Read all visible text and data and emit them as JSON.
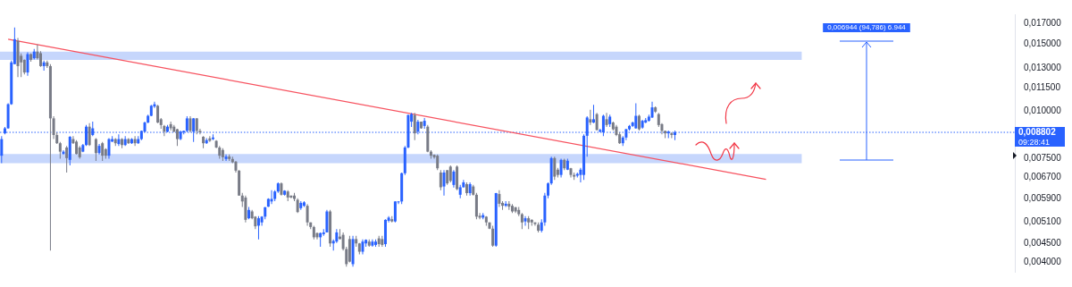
{
  "chart_data": {
    "type": "candlestick",
    "categories": [
      null,
      null,
      null,
      null,
      null,
      null,
      null,
      null,
      null,
      null,
      null,
      null,
      null,
      null,
      null,
      null,
      null,
      null,
      null,
      null,
      null,
      null,
      null,
      null,
      null,
      null,
      null,
      null,
      null,
      null,
      null,
      null,
      null,
      null,
      null,
      null,
      null,
      null,
      null,
      null,
      null,
      null,
      null,
      null,
      null,
      null,
      null,
      null,
      null,
      null,
      null,
      null,
      null,
      null,
      null,
      null,
      null,
      null,
      null,
      null,
      null,
      null,
      null,
      null,
      null,
      null,
      null,
      null,
      null,
      null,
      null,
      null,
      null,
      null,
      null,
      null,
      null,
      null,
      null,
      null,
      null,
      null,
      null,
      null,
      null,
      null,
      null,
      null,
      null,
      null,
      null,
      null,
      null,
      null,
      null,
      null,
      null,
      null,
      null,
      null,
      null,
      null,
      null,
      null,
      null,
      null,
      null,
      null,
      null,
      null,
      null,
      null,
      null,
      null,
      null,
      null,
      null,
      null,
      null,
      null,
      null,
      null,
      null,
      null,
      null,
      null,
      null,
      null,
      null,
      null,
      null,
      null,
      null,
      null,
      null,
      null,
      null,
      null,
      null,
      null,
      null,
      null,
      null,
      null,
      null,
      null,
      null,
      null,
      null,
      null,
      null,
      null,
      null,
      null,
      null,
      null,
      null,
      null,
      null,
      null,
      null,
      null,
      null,
      null,
      null,
      null,
      null,
      null,
      null,
      null,
      null,
      null,
      null,
      null,
      null,
      null,
      null,
      null,
      null,
      null,
      null,
      null,
      null,
      null,
      null,
      null,
      null,
      null,
      null,
      null,
      null,
      null,
      null,
      null,
      null,
      null,
      null,
      null,
      null,
      null,
      null,
      null,
      null,
      null,
      null,
      null,
      null,
      null,
      null,
      null,
      null,
      null,
      null,
      null,
      null,
      null,
      null,
      null,
      null,
      null,
      null,
      null,
      null,
      null,
      null,
      null,
      null,
      null,
      null,
      null,
      null,
      null,
      null,
      null,
      null,
      null,
      null,
      null,
      null,
      null,
      null,
      null,
      null,
      null,
      null,
      null,
      null,
      null,
      null,
      null,
      null,
      null,
      null,
      null,
      null,
      null,
      null,
      null,
      null,
      null,
      null,
      null,
      null,
      null,
      null,
      null,
      null,
      null,
      null,
      null,
      null,
      null,
      null,
      null,
      null,
      null,
      null,
      null,
      null,
      null,
      null,
      null,
      null,
      null,
      null,
      null,
      null,
      null,
      null,
      null,
      null,
      null,
      null,
      null,
      null,
      null,
      null,
      null,
      null,
      null,
      null,
      null,
      null,
      null,
      null,
      null,
      null,
      null,
      null,
      null,
      null,
      null
    ],
    "ohlc": [
      [
        0.00764,
        0.0086,
        0.0073,
        0.00845
      ],
      [
        0.00875,
        0.0091,
        0.0087,
        0.00902
      ],
      [
        0.00902,
        0.0105,
        0.009,
        0.01044
      ],
      [
        0.01044,
        0.0136,
        0.0104,
        0.01345
      ],
      [
        0.01331,
        0.01662,
        0.0133,
        0.01548
      ],
      [
        0.01533,
        0.0156,
        0.0123,
        0.01315
      ],
      [
        0.014,
        0.0142,
        0.0123,
        0.01345
      ],
      [
        0.01366,
        0.0137,
        0.0125,
        0.01265
      ],
      [
        0.01265,
        0.0143,
        0.0124,
        0.01414
      ],
      [
        0.01414,
        0.0142,
        0.0135,
        0.01366
      ],
      [
        0.0138,
        0.0146,
        0.0137,
        0.01436
      ],
      [
        0.01436,
        0.015,
        0.0137,
        0.0138
      ],
      [
        0.01422,
        0.0144,
        0.0131,
        0.01315
      ],
      [
        0.01315,
        0.0136,
        0.0128,
        0.01345
      ],
      [
        0.01345,
        0.0136,
        0.013,
        0.01315
      ],
      [
        0.01315,
        0.0133,
        0.0043,
        0.00958
      ],
      [
        0.00958,
        0.0097,
        0.00845,
        0.00866
      ],
      [
        0.00866,
        0.0088,
        0.0082,
        0.00824
      ],
      [
        0.00824,
        0.0083,
        0.0075,
        0.00783
      ],
      [
        0.00772,
        0.0079,
        0.0077,
        0.00783
      ],
      [
        0.00803,
        0.0081,
        0.0069,
        0.00753
      ],
      [
        0.00745,
        0.0086,
        0.0072,
        0.00857
      ],
      [
        0.00845,
        0.0086,
        0.0082,
        0.00824
      ],
      [
        0.00832,
        0.0084,
        0.0077,
        0.00772
      ],
      [
        0.00803,
        0.0081,
        0.0075,
        0.00757
      ],
      [
        0.00783,
        0.0082,
        0.0078,
        0.00815
      ],
      [
        0.00815,
        0.0092,
        0.0081,
        0.00911
      ],
      [
        0.00911,
        0.0093,
        0.0081,
        0.00815
      ],
      [
        0.00866,
        0.0094,
        0.0086,
        0.00902
      ],
      [
        0.00845,
        0.0085,
        0.0074,
        0.00776
      ],
      [
        0.00776,
        0.0082,
        0.0077,
        0.00811
      ],
      [
        0.00824,
        0.0083,
        0.0074,
        0.00764
      ],
      [
        0.00795,
        0.008,
        0.0075,
        0.00764
      ],
      [
        0.00764,
        0.0085,
        0.0075,
        0.00845
      ],
      [
        0.00832,
        0.0086,
        0.0083,
        0.00845
      ],
      [
        0.00845,
        0.0085,
        0.0081,
        0.00824
      ],
      [
        0.0082,
        0.0087,
        0.0081,
        0.00845
      ],
      [
        0.00845,
        0.0085,
        0.008,
        0.00815
      ],
      [
        0.00815,
        0.0086,
        0.0081,
        0.00845
      ],
      [
        0.00845,
        0.0085,
        0.0082,
        0.00824
      ],
      [
        0.00824,
        0.0085,
        0.0082,
        0.00845
      ],
      [
        0.00845,
        0.0086,
        0.0081,
        0.00824
      ],
      [
        0.00824,
        0.0086,
        0.0082,
        0.00845
      ],
      [
        0.00845,
        0.0089,
        0.0084,
        0.00888
      ],
      [
        0.00884,
        0.0094,
        0.0088,
        0.00934
      ],
      [
        0.00934,
        0.0098,
        0.0093,
        0.00973
      ],
      [
        0.00973,
        0.0104,
        0.0097,
        0.01034
      ],
      [
        0.01029,
        0.0106,
        0.0102,
        0.01044
      ],
      [
        0.01034,
        0.0104,
        0.0093,
        0.00934
      ],
      [
        0.00953,
        0.0096,
        0.009,
        0.0092
      ],
      [
        0.00915,
        0.0092,
        0.0086,
        0.00884
      ],
      [
        0.00884,
        0.0092,
        0.0088,
        0.00911
      ],
      [
        0.00925,
        0.0094,
        0.0089,
        0.00902
      ],
      [
        0.00911,
        0.0092,
        0.0088,
        0.00884
      ],
      [
        0.00897,
        0.009,
        0.0081,
        0.00845
      ],
      [
        0.00845,
        0.0089,
        0.0084,
        0.00884
      ],
      [
        0.0088,
        0.0089,
        0.0087,
        0.00888
      ],
      [
        0.00888,
        0.0097,
        0.0088,
        0.00958
      ],
      [
        0.00958,
        0.0097,
        0.0088,
        0.00888
      ],
      [
        0.00884,
        0.0096,
        0.0083,
        0.00958
      ],
      [
        0.00958,
        0.0096,
        0.0087,
        0.00888
      ],
      [
        0.00888,
        0.009,
        0.0087,
        0.0088
      ],
      [
        0.00857,
        0.0086,
        0.008,
        0.00824
      ],
      [
        0.00824,
        0.0085,
        0.0082,
        0.0084
      ],
      [
        0.00849,
        0.0086,
        0.0083,
        0.00836
      ],
      [
        0.00845,
        0.0087,
        0.0084,
        0.00853
      ],
      [
        0.00836,
        0.0084,
        0.008,
        0.00803
      ],
      [
        0.00803,
        0.0081,
        0.0075,
        0.00764
      ],
      [
        0.00791,
        0.008,
        0.0074,
        0.00757
      ],
      [
        0.00749,
        0.0077,
        0.0074,
        0.0076
      ],
      [
        0.0076,
        0.0077,
        0.0074,
        0.00749
      ],
      [
        0.00749,
        0.0076,
        0.0073,
        0.00734
      ],
      [
        0.00737,
        0.0074,
        0.0069,
        0.00698
      ],
      [
        0.00698,
        0.007,
        0.006,
        0.006
      ],
      [
        0.006,
        0.0061,
        0.0056,
        0.00579
      ],
      [
        0.00593,
        0.006,
        0.0051,
        0.00518
      ],
      [
        0.00523,
        0.0056,
        0.0052,
        0.0055
      ],
      [
        0.00545,
        0.0055,
        0.0052,
        0.00523
      ],
      [
        0.00528,
        0.0053,
        0.0049,
        0.00498
      ],
      [
        0.005,
        0.0053,
        0.0046,
        0.00523
      ],
      [
        0.0051,
        0.0053,
        0.005,
        0.00528
      ],
      [
        0.00528,
        0.0056,
        0.0052,
        0.00559
      ],
      [
        0.00561,
        0.0059,
        0.0056,
        0.00588
      ],
      [
        0.00579,
        0.0062,
        0.0057,
        0.00588
      ],
      [
        0.00588,
        0.0062,
        0.0058,
        0.00615
      ],
      [
        0.00615,
        0.0065,
        0.0061,
        0.00646
      ],
      [
        0.00646,
        0.0065,
        0.006,
        0.00603
      ],
      [
        0.00603,
        0.0062,
        0.006,
        0.00618
      ],
      [
        0.00615,
        0.0062,
        0.0058,
        0.00593
      ],
      [
        0.006,
        0.006,
        0.0059,
        0.00593
      ],
      [
        0.006,
        0.0061,
        0.0058,
        0.00588
      ],
      [
        0.00585,
        0.0059,
        0.0054,
        0.00543
      ],
      [
        0.00556,
        0.0058,
        0.0055,
        0.00574
      ],
      [
        0.00564,
        0.0058,
        0.0056,
        0.00576
      ],
      [
        0.00564,
        0.0057,
        0.005,
        0.0051
      ],
      [
        0.0051,
        0.0051,
        0.0049,
        0.00496
      ],
      [
        0.00496,
        0.005,
        0.0046,
        0.00466
      ],
      [
        0.00478,
        0.0048,
        0.0046,
        0.00466
      ],
      [
        0.00466,
        0.0048,
        0.0044,
        0.00478
      ],
      [
        0.00475,
        0.0049,
        0.0047,
        0.0048
      ],
      [
        0.0048,
        0.0055,
        0.0048,
        0.00545
      ],
      [
        0.00545,
        0.0055,
        0.0044,
        0.00449
      ],
      [
        0.00449,
        0.0046,
        0.0043,
        0.00456
      ],
      [
        0.00454,
        0.0049,
        0.0045,
        0.0048
      ],
      [
        0.00468,
        0.0049,
        0.0046,
        0.00461
      ],
      [
        0.00473,
        0.0048,
        0.0043,
        0.00434
      ],
      [
        0.00434,
        0.0044,
        0.0039,
        0.00396
      ],
      [
        0.00461,
        0.0047,
        0.004,
        0.00402
      ],
      [
        0.00396,
        0.0047,
        0.0039,
        0.00461
      ],
      [
        0.00461,
        0.0047,
        0.0044,
        0.00449
      ],
      [
        0.00449,
        0.0045,
        0.0042,
        0.00427
      ],
      [
        0.00427,
        0.0046,
        0.0042,
        0.00454
      ],
      [
        0.00449,
        0.0046,
        0.0044,
        0.00459
      ],
      [
        0.00454,
        0.0046,
        0.0044,
        0.00443
      ],
      [
        0.00443,
        0.0046,
        0.0044,
        0.00454
      ],
      [
        0.00445,
        0.0046,
        0.0044,
        0.00454
      ],
      [
        0.00463,
        0.0047,
        0.0044,
        0.00447
      ],
      [
        0.00461,
        0.0047,
        0.0044,
        0.00445
      ],
      [
        0.00447,
        0.0052,
        0.0044,
        0.00518
      ],
      [
        0.00515,
        0.0053,
        0.0051,
        0.00525
      ],
      [
        0.0052,
        0.0053,
        0.0051,
        0.00513
      ],
      [
        0.00513,
        0.0058,
        0.0051,
        0.00579
      ],
      [
        0.00576,
        0.0058,
        0.0057,
        0.00579
      ],
      [
        0.00579,
        0.0069,
        0.0057,
        0.00687
      ],
      [
        0.00687,
        0.0081,
        0.0068,
        0.00803
      ],
      [
        0.00803,
        0.0098,
        0.008,
        0.00978
      ],
      [
        0.00939,
        0.0099,
        0.0091,
        0.00983
      ],
      [
        0.00978,
        0.0099,
        0.0084,
        0.00875
      ],
      [
        0.00884,
        0.0095,
        0.0087,
        0.00939
      ],
      [
        0.00939,
        0.0094,
        0.009,
        0.00902
      ],
      [
        0.00915,
        0.0096,
        0.009,
        0.00944
      ],
      [
        0.00911,
        0.0092,
        0.0078,
        0.00783
      ],
      [
        0.00783,
        0.0079,
        0.0075,
        0.00764
      ],
      [
        0.00768,
        0.0077,
        0.0075,
        0.00757
      ],
      [
        0.00764,
        0.0077,
        0.007,
        0.00708
      ],
      [
        0.0069,
        0.007,
        0.0062,
        0.00631
      ],
      [
        0.00634,
        0.007,
        0.006,
        0.0069
      ],
      [
        0.007,
        0.007,
        0.0064,
        0.00646
      ],
      [
        0.00715,
        0.0072,
        0.0065,
        0.00656
      ],
      [
        0.0064,
        0.007,
        0.0063,
        0.00694
      ],
      [
        0.00715,
        0.0072,
        0.0062,
        0.00624
      ],
      [
        0.00603,
        0.0064,
        0.0059,
        0.00631
      ],
      [
        0.00631,
        0.0066,
        0.0063,
        0.0065
      ],
      [
        0.00643,
        0.0065,
        0.006,
        0.00609
      ],
      [
        0.00609,
        0.0065,
        0.006,
        0.00643
      ],
      [
        0.00634,
        0.0064,
        0.006,
        0.00603
      ],
      [
        0.00603,
        0.0061,
        0.0052,
        0.00528
      ],
      [
        0.00531,
        0.0054,
        0.0052,
        0.00525
      ],
      [
        0.00525,
        0.0054,
        0.0052,
        0.00533
      ],
      [
        0.00528,
        0.0053,
        0.005,
        0.0051
      ],
      [
        0.0051,
        0.0051,
        0.0049,
        0.00491
      ],
      [
        0.00491,
        0.005,
        0.0044,
        0.00443
      ],
      [
        0.00443,
        0.0061,
        0.0044,
        0.00609
      ],
      [
        0.00606,
        0.0062,
        0.0056,
        0.00571
      ],
      [
        0.00574,
        0.0058,
        0.0055,
        0.00564
      ],
      [
        0.00564,
        0.0058,
        0.0056,
        0.00571
      ],
      [
        0.00571,
        0.0058,
        0.0055,
        0.00561
      ],
      [
        0.00564,
        0.0057,
        0.0054,
        0.00545
      ],
      [
        0.00559,
        0.0056,
        0.0054,
        0.00545
      ],
      [
        0.0055,
        0.0056,
        0.0053,
        0.00536
      ],
      [
        0.00536,
        0.0054,
        0.0049,
        0.0051
      ],
      [
        0.00513,
        0.0053,
        0.005,
        0.00523
      ],
      [
        0.00523,
        0.0053,
        0.0049,
        0.0051
      ],
      [
        0.00518,
        0.0052,
        0.005,
        0.0051
      ],
      [
        0.0051,
        0.0051,
        0.005,
        0.00505
      ],
      [
        0.00503,
        0.0051,
        0.0048,
        0.00485
      ],
      [
        0.00485,
        0.0052,
        0.0048,
        0.0051
      ],
      [
        0.0051,
        0.0061,
        0.005,
        0.006
      ],
      [
        0.006,
        0.0065,
        0.0059,
        0.00646
      ],
      [
        0.00646,
        0.0076,
        0.0064,
        0.00753
      ],
      [
        0.00753,
        0.0076,
        0.0066,
        0.00673
      ],
      [
        0.00702,
        0.0071,
        0.0067,
        0.0068
      ],
      [
        0.0068,
        0.0075,
        0.0067,
        0.00745
      ],
      [
        0.00745,
        0.0075,
        0.007,
        0.00708
      ],
      [
        0.00702,
        0.0075,
        0.007,
        0.00741
      ],
      [
        0.00708,
        0.0071,
        0.0067,
        0.0068
      ],
      [
        0.0068,
        0.0069,
        0.0066,
        0.00673
      ],
      [
        0.00677,
        0.0069,
        0.0067,
        0.00684
      ],
      [
        0.0068,
        0.0071,
        0.0065,
        0.00702
      ],
      [
        0.0068,
        0.0087,
        0.0066,
        0.00862
      ],
      [
        0.00862,
        0.0097,
        0.0076,
        0.00963
      ],
      [
        0.00953,
        0.0101,
        0.0092,
        0.00934
      ],
      [
        0.00934,
        0.0104,
        0.0093,
        0.00953
      ],
      [
        0.00983,
        0.0099,
        0.0089,
        0.00893
      ],
      [
        0.00884,
        0.009,
        0.0088,
        0.00893
      ],
      [
        0.0088,
        0.0098,
        0.0086,
        0.00973
      ],
      [
        0.00953,
        0.0099,
        0.0091,
        0.0092
      ],
      [
        0.00925,
        0.0098,
        0.0091,
        0.00968
      ],
      [
        0.00934,
        0.0094,
        0.0089,
        0.00897
      ],
      [
        0.00911,
        0.0092,
        0.0086,
        0.00866
      ],
      [
        0.0087,
        0.0088,
        0.0082,
        0.00824
      ],
      [
        0.00824,
        0.0086,
        0.0081,
        0.00853
      ],
      [
        0.00853,
        0.009,
        0.0084,
        0.00897
      ],
      [
        0.00897,
        0.0092,
        0.0089,
        0.00915
      ],
      [
        0.00915,
        0.0094,
        0.0091,
        0.00934
      ],
      [
        0.00902,
        0.0105,
        0.009,
        0.00973
      ],
      [
        0.00973,
        0.0098,
        0.0089,
        0.00897
      ],
      [
        0.00906,
        0.0095,
        0.009,
        0.00944
      ],
      [
        0.00934,
        0.0096,
        0.0093,
        0.00948
      ],
      [
        0.00944,
        0.0098,
        0.0094,
        0.00968
      ],
      [
        0.00963,
        0.0106,
        0.0096,
        0.01024
      ],
      [
        0.01024,
        0.0103,
        0.0099,
        0.00998
      ],
      [
        0.00983,
        0.0099,
        0.0091,
        0.0092
      ],
      [
        0.00925,
        0.0093,
        0.0087,
        0.00888
      ],
      [
        0.00888,
        0.0089,
        0.0085,
        0.00875
      ],
      [
        0.00875,
        0.0089,
        0.0085,
        0.00884
      ],
      [
        0.00875,
        0.0088,
        0.0085,
        0.00866
      ],
      [
        0.00866,
        0.0089,
        0.0084,
        0.008802
      ],
      null,
      null,
      null,
      null,
      null,
      null,
      null,
      null,
      null,
      null,
      null,
      null,
      null,
      null,
      null,
      null,
      null,
      null,
      null,
      null,
      null,
      null,
      null,
      null,
      null,
      null,
      null,
      null,
      null,
      null,
      null,
      null,
      null,
      null,
      null,
      null,
      null,
      null,
      null,
      null,
      null,
      null,
      null,
      null,
      null,
      null,
      null,
      null,
      null,
      null,
      null,
      null,
      null,
      null,
      null,
      null,
      null,
      null,
      null,
      null,
      null,
      null,
      null,
      null,
      null,
      null,
      null,
      null,
      null,
      null,
      null,
      null,
      null,
      null,
      null,
      null,
      null,
      null,
      null,
      null,
      null,
      null,
      null,
      null,
      null,
      null,
      null,
      null,
      null,
      null,
      null,
      null,
      null,
      null,
      null,
      null,
      null,
      null,
      null,
      null,
      null,
      null,
      null,
      null
    ],
    "series": [
      {
        "type": "line",
        "color": "#f7525f",
        "values": [
          null,
          null,
          0.01548,
          null,
          null,
          null,
          null,
          null,
          null,
          null,
          null,
          null,
          null,
          null,
          null,
          null,
          null,
          null,
          null,
          null,
          null,
          null,
          null,
          null,
          null,
          null,
          null,
          null,
          null,
          null,
          null,
          null,
          null,
          null,
          null,
          null,
          null,
          null,
          null,
          null,
          null,
          null,
          null,
          null,
          null,
          null,
          null,
          null,
          null,
          null,
          null,
          null,
          null,
          null,
          null,
          null,
          null,
          null,
          null,
          null,
          null,
          null,
          null,
          null,
          null,
          null,
          null,
          null,
          null,
          null,
          null,
          null,
          null,
          null,
          null,
          null,
          null,
          null,
          null,
          null,
          null,
          null,
          null,
          null,
          null,
          null,
          null,
          null,
          null,
          null,
          null,
          null,
          null,
          null,
          null,
          null,
          null,
          null,
          null,
          null,
          null,
          null,
          null,
          null,
          null,
          null,
          null,
          null,
          null,
          null,
          null,
          null,
          null,
          null,
          null,
          null,
          null,
          null,
          null,
          null,
          null,
          null,
          null,
          null,
          null,
          null,
          null,
          null,
          null,
          null,
          null,
          null,
          null,
          null,
          null,
          null,
          null,
          null,
          null,
          null,
          null,
          null,
          null,
          null,
          null,
          null,
          null,
          null,
          null,
          null,
          null,
          null,
          null,
          null,
          null,
          null,
          null,
          null,
          null,
          null,
          null,
          null,
          null,
          null,
          null,
          null,
          null,
          null,
          null,
          null,
          null,
          null,
          null,
          null,
          null,
          null,
          null,
          null,
          null,
          null,
          null,
          null,
          null,
          null,
          null,
          null,
          null,
          null,
          null,
          null,
          null,
          null,
          null,
          null,
          null,
          null,
          null,
          null,
          null,
          null,
          null,
          null,
          null,
          null,
          null,
          null,
          null,
          null,
          null,
          null,
          null,
          null,
          null,
          null,
          null,
          null,
          null,
          null,
          null,
          null,
          null,
          null,
          null,
          null,
          null,
          null,
          null,
          null,
          null,
          null,
          null,
          null,
          null,
          null,
          null,
          0.00662,
          null,
          null,
          null,
          null,
          null,
          null,
          null,
          null,
          null,
          null,
          null,
          null,
          null,
          null,
          null,
          null,
          null,
          null,
          null,
          null,
          null,
          null,
          null,
          null,
          null,
          null,
          null,
          null,
          null,
          null,
          null,
          null,
          null,
          null,
          null,
          null,
          null,
          null,
          null,
          null,
          null,
          null,
          null,
          null,
          null,
          null,
          null,
          null,
          null,
          null,
          null,
          null,
          null,
          null,
          null,
          null,
          null,
          null,
          null,
          null,
          null,
          null,
          null,
          null,
          null,
          null,
          null,
          null,
          null,
          null,
          null,
          null,
          null,
          null,
          null,
          null
        ]
      }
    ],
    "log": true,
    "ylim": [
      0.00376,
      0.018
    ],
    "yticks": [
      {
        "value": 0.017,
        "label": "0,017000"
      },
      {
        "value": 0.015,
        "label": "0,015000"
      },
      {
        "value": 0.013,
        "label": "0,013000"
      },
      {
        "value": 0.0115,
        "label": "0,011500"
      },
      {
        "value": 0.01,
        "label": "0,010000"
      },
      {
        "value": 0.0075,
        "label": "0,007500"
      },
      {
        "value": 0.0067,
        "label": "0,006700"
      },
      {
        "value": 0.0059,
        "label": "0,005900"
      },
      {
        "value": 0.0051,
        "label": "0,005100"
      },
      {
        "value": 0.0045,
        "label": "0,004500"
      },
      {
        "value": 0.004,
        "label": "0,004000"
      }
    ],
    "tick_labels": "y",
    "bands": [
      {
        "axis": "y",
        "from": 0.0073,
        "to": 0.00772,
        "color": "#c6d6fc"
      },
      {
        "axis": "y",
        "from": 0.01366,
        "to": 0.01436,
        "color": "#c6d6fc"
      }
    ],
    "ref_lines": [
      {
        "axis": "y",
        "value": 0.008802,
        "label": "0,008802",
        "color": "#2962ff",
        "line_style": "dotted"
      }
    ],
    "annotations": [
      "0,006944 (94,786) 6.944",
      "09:28:41"
    ],
    "legend": false
  }
}
